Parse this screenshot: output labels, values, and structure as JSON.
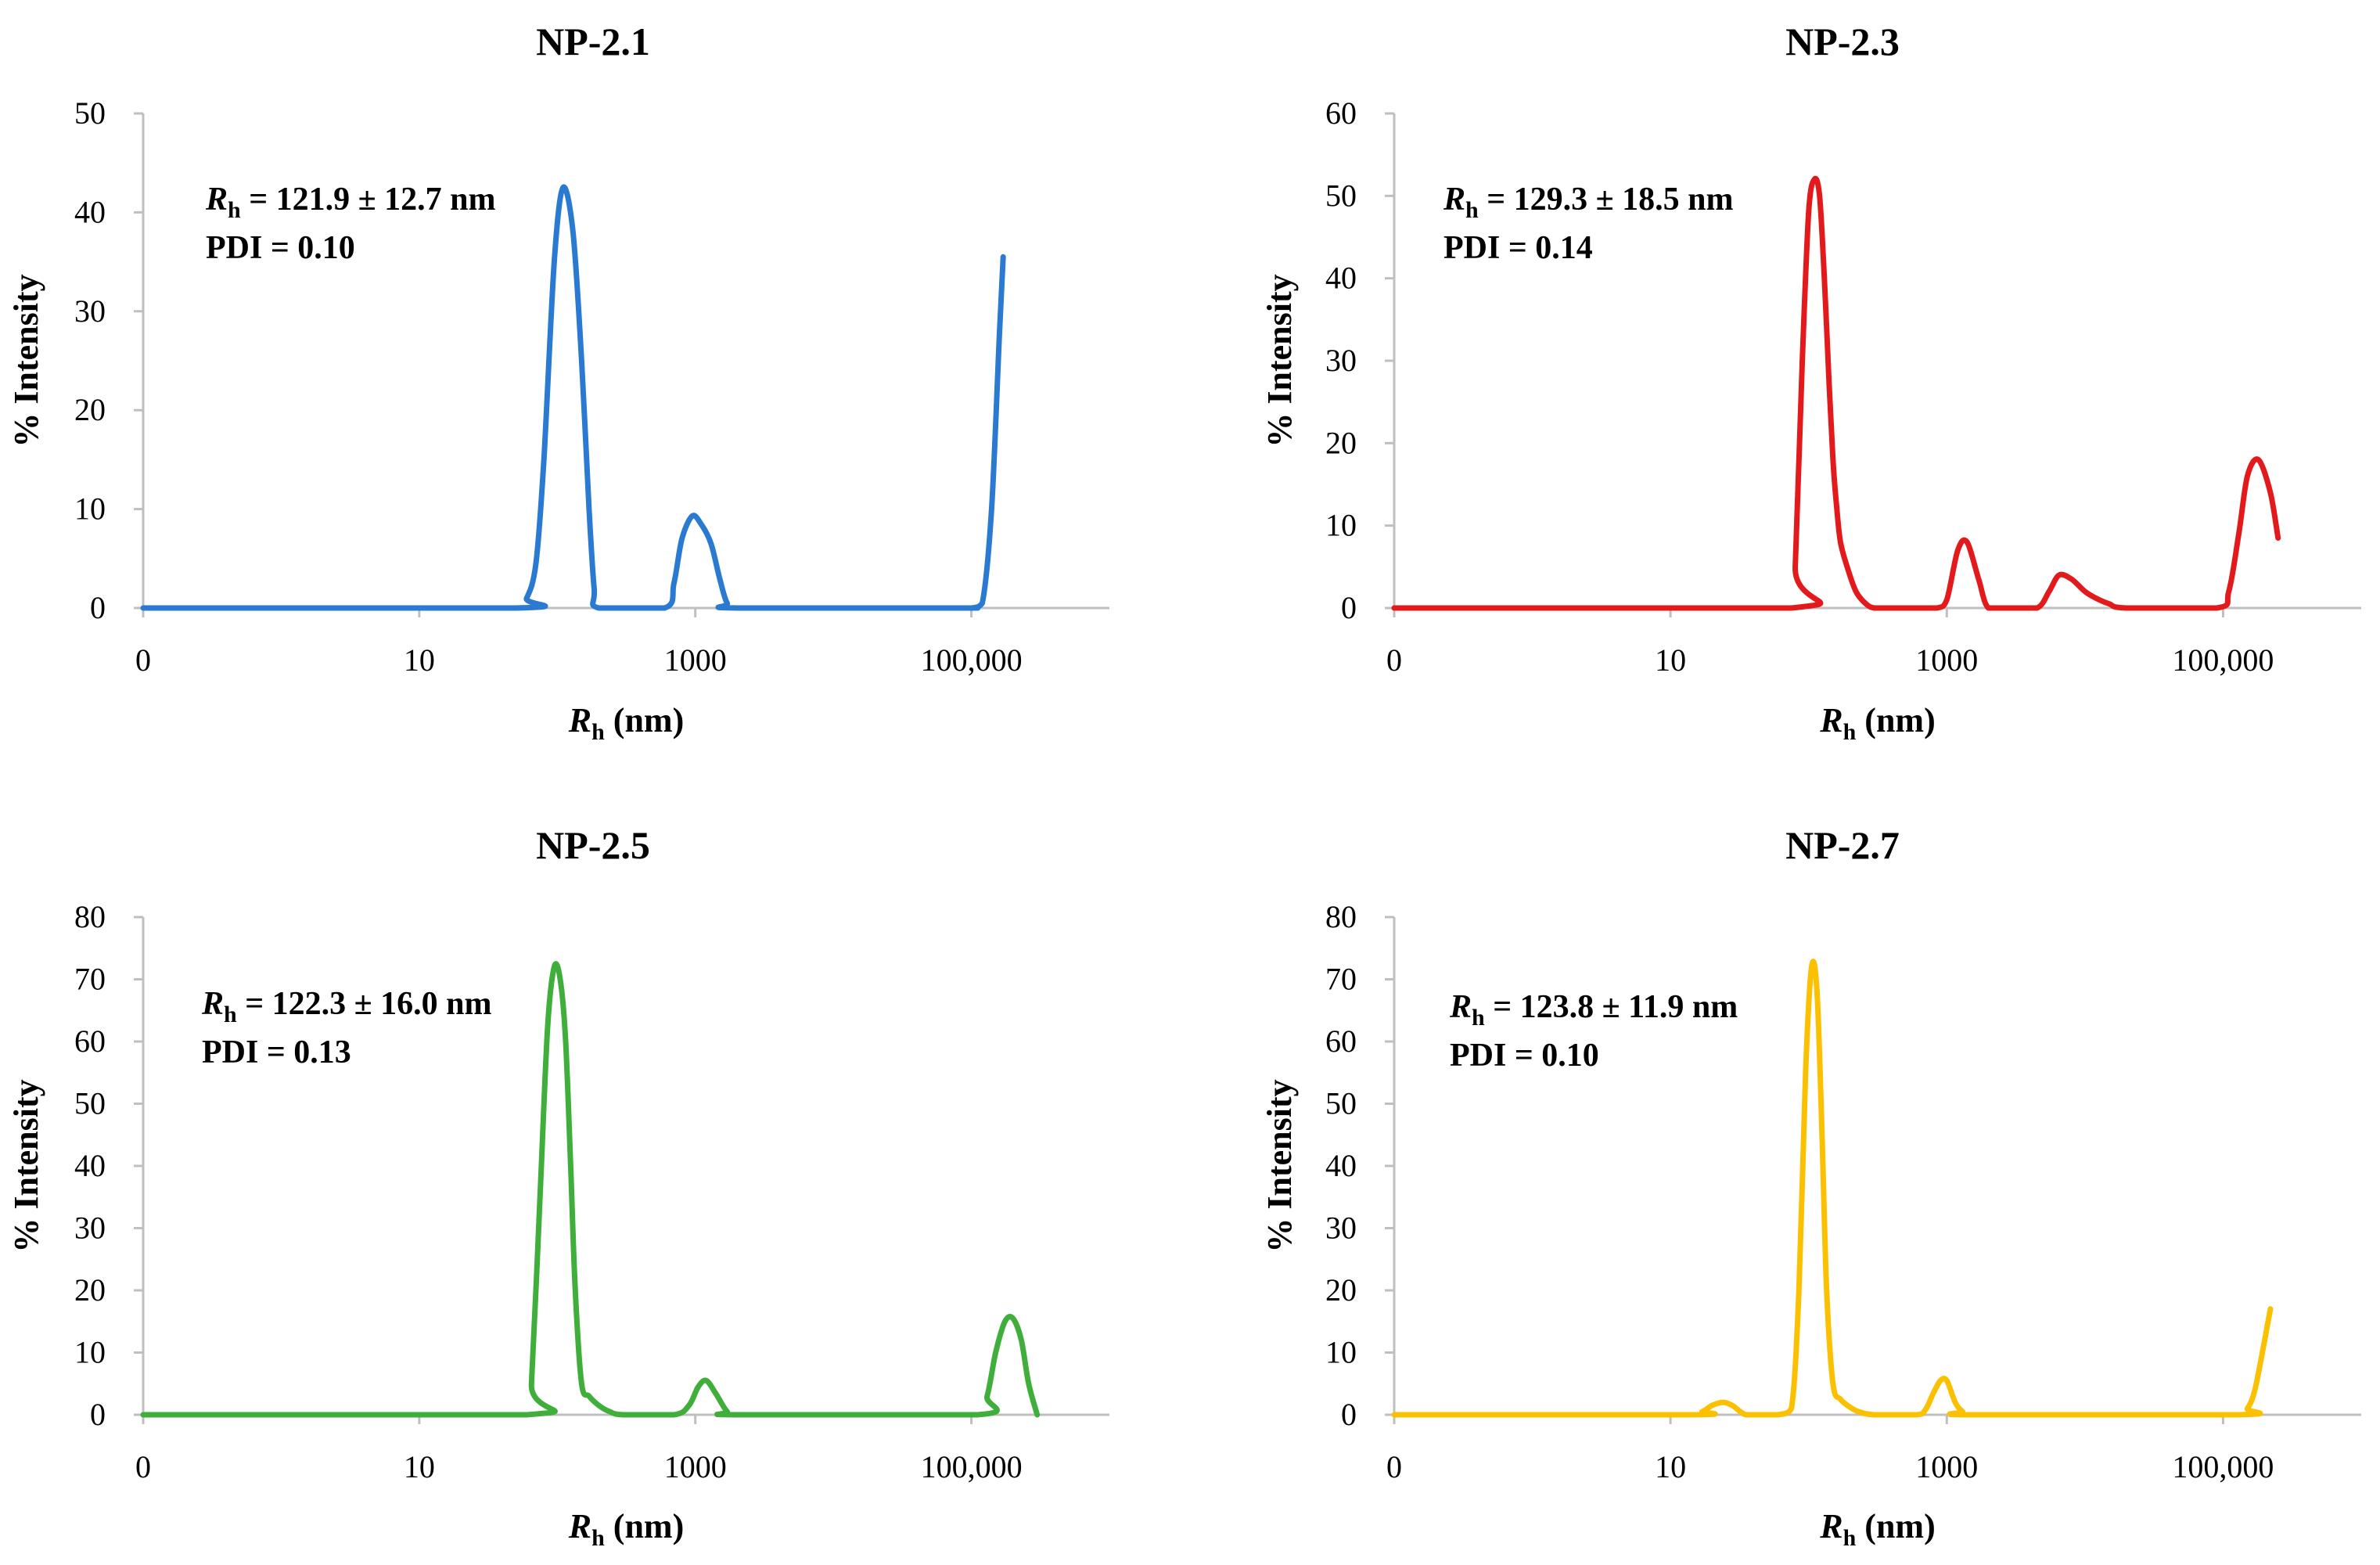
{
  "chart_data": [
    {
      "type": "line",
      "title": "NP-2.1",
      "color": "#2a7ad2",
      "xlabel": "R",
      "xlabel_sub": "h",
      "xlabel_unit": " (nm)",
      "ylabel": "% Intensity",
      "xscale": "log",
      "xlim": [
        0.1,
        1000000
      ],
      "ylim": [
        0,
        50
      ],
      "yticks": [
        0,
        10,
        20,
        30,
        40,
        50
      ],
      "xticks": [
        {
          "value": 0.1,
          "label": "0"
        },
        {
          "value": 10,
          "label": "10"
        },
        {
          "value": 1000,
          "label": "1000"
        },
        {
          "value": 100000,
          "label": "100,000"
        }
      ],
      "annotation": {
        "prefix": "R",
        "sub": "h",
        "rest": " = 121.9 ± 12.7 nm",
        "line2": "PDI = 0.10"
      },
      "series": [
        {
          "name": "NP-2.1",
          "x": [
            0.1,
            50,
            60,
            70,
            80,
            95,
            110,
            130,
            150,
            170,
            185,
            200,
            600,
            700,
            800,
            950,
            1100,
            1300,
            1500,
            1700,
            2000,
            80000,
            100000,
            120000,
            140000,
            160000,
            170000
          ],
          "y": [
            0,
            0,
            1,
            4.5,
            15,
            35,
            42.5,
            38,
            25,
            10,
            2,
            0,
            0,
            2.5,
            7,
            9.3,
            8.5,
            6.5,
            3,
            0.5,
            0,
            0,
            0,
            0.5,
            10,
            28,
            35.5
          ]
        }
      ]
    },
    {
      "type": "line",
      "title": "NP-2.3",
      "color": "#e31a1c",
      "xlabel": "R",
      "xlabel_sub": "h",
      "xlabel_unit": " (nm)",
      "ylabel": "% Intensity",
      "xscale": "log",
      "xlim": [
        0.1,
        1000000
      ],
      "ylim": [
        0,
        60
      ],
      "yticks": [
        0,
        10,
        20,
        30,
        40,
        50,
        60
      ],
      "xticks": [
        {
          "value": 0.1,
          "label": "0"
        },
        {
          "value": 10,
          "label": "10"
        },
        {
          "value": 1000,
          "label": "1000"
        },
        {
          "value": 100000,
          "label": "100,000"
        }
      ],
      "annotation": {
        "prefix": "R",
        "sub": "h",
        "rest": " = 129.3 ± 18.5 nm",
        "line2": "PDI = 0.14"
      },
      "series": [
        {
          "name": "NP-2.3",
          "x": [
            0.1,
            75,
            80,
            90,
            100,
            110,
            120,
            130,
            140,
            150,
            160,
            170,
            190,
            220,
            260,
            300,
            400,
            600,
            850,
            1000,
            1200,
            1400,
            1700,
            2000,
            2800,
            4500,
            5500,
            6500,
            8000,
            10000,
            12000,
            15000,
            20000,
            90000,
            110000,
            130000,
            150000,
            180000,
            220000,
            250000
          ],
          "y": [
            0,
            0,
            5,
            30,
            48,
            52,
            50,
            40,
            28,
            18,
            12,
            8,
            5,
            2,
            0.5,
            0,
            0,
            0,
            0,
            1,
            7,
            8,
            3.5,
            0,
            0,
            0,
            2,
            4,
            3.5,
            2,
            1.2,
            0.5,
            0,
            0,
            2,
            9,
            16,
            18,
            14,
            8.5
          ]
        }
      ]
    },
    {
      "type": "line",
      "title": "NP-2.5",
      "color": "#3fae3a",
      "xlabel": "R",
      "xlabel_sub": "h",
      "xlabel_unit": " (nm)",
      "ylabel": "% Intensity",
      "xscale": "log",
      "xlim": [
        0.1,
        1000000
      ],
      "ylim": [
        0,
        80
      ],
      "yticks": [
        0,
        10,
        20,
        30,
        40,
        50,
        60,
        70,
        80
      ],
      "xticks": [
        {
          "value": 0.1,
          "label": "0"
        },
        {
          "value": 10,
          "label": "10"
        },
        {
          "value": 1000,
          "label": "1000"
        },
        {
          "value": 100000,
          "label": "100,000"
        }
      ],
      "annotation": {
        "prefix": "R",
        "sub": "h",
        "rest": " = 122.3 ± 16.0 nm",
        "line2": "PDI = 0.13"
      },
      "series": [
        {
          "name": "NP-2.5",
          "x": [
            0.1,
            60,
            65,
            75,
            85,
            95,
            105,
            115,
            125,
            135,
            150,
            170,
            200,
            240,
            300,
            700,
            900,
            1050,
            1200,
            1400,
            1700,
            2000,
            110000,
            130000,
            150000,
            175000,
            200000,
            230000,
            260000,
            300000
          ],
          "y": [
            0,
            0,
            5,
            35,
            62,
            72,
            70,
            60,
            40,
            20,
            5,
            3,
            1.5,
            0.5,
            0,
            0,
            1.5,
            4.5,
            5.5,
            3.5,
            0.5,
            0,
            0,
            3,
            10,
            15,
            15.5,
            12,
            5,
            0
          ]
        }
      ]
    },
    {
      "type": "line",
      "title": "NP-2.7",
      "color": "#fbc000",
      "xlabel": "R",
      "xlabel_sub": "h",
      "xlabel_unit": " (nm)",
      "ylabel": "% Intensity",
      "xscale": "log",
      "xlim": [
        0.1,
        1000000
      ],
      "ylim": [
        0,
        80
      ],
      "yticks": [
        0,
        10,
        20,
        30,
        40,
        50,
        60,
        70,
        80
      ],
      "xticks": [
        {
          "value": 0.1,
          "label": "0"
        },
        {
          "value": 10,
          "label": "10"
        },
        {
          "value": 1000,
          "label": "1000"
        },
        {
          "value": 100000,
          "label": "100,000"
        }
      ],
      "annotation": {
        "prefix": "R",
        "sub": "h",
        "rest": " = 123.8 ± 11.9 nm",
        "line2": "PDI = 0.10"
      },
      "series": [
        {
          "name": "NP-2.7",
          "x": [
            0.1,
            14,
            17,
            20,
            24,
            28,
            32,
            35,
            40,
            50,
            60,
            75,
            85,
            95,
            105,
            115,
            125,
            135,
            150,
            170,
            200,
            230,
            300,
            600,
            700,
            800,
            900,
            1000,
            1150,
            1300,
            1500,
            130000,
            150000,
            170000,
            200000,
            220000
          ],
          "y": [
            0,
            0,
            0.5,
            1.5,
            2,
            1.5,
            0.5,
            0,
            0,
            0,
            0,
            1,
            20,
            55,
            72,
            68,
            45,
            20,
            5,
            2.5,
            1.2,
            0.5,
            0,
            0,
            0.8,
            3.5,
            5.5,
            5.5,
            2,
            0.5,
            0,
            0,
            1,
            4,
            12,
            17
          ]
        }
      ]
    }
  ]
}
